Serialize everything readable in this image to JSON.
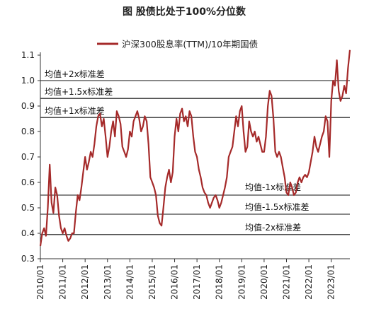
{
  "chart_data": {
    "type": "line",
    "title": "图 股债比处于100%分位数",
    "legend": {
      "position": "top",
      "entries": [
        "沪深300股息率(TTM)/10年期国债"
      ]
    },
    "series": [
      {
        "name": "沪深300股息率(TTM)/10年期国债",
        "color": "#A52A2A",
        "points": [
          [
            "2010/01",
            0.35
          ],
          [
            "2010/02",
            0.4
          ],
          [
            "2010/03",
            0.42
          ],
          [
            "2010/04",
            0.39
          ],
          [
            "2010/05",
            0.5
          ],
          [
            "2010/06",
            0.67
          ],
          [
            "2010/07",
            0.52
          ],
          [
            "2010/08",
            0.48
          ],
          [
            "2010/09",
            0.58
          ],
          [
            "2010/10",
            0.55
          ],
          [
            "2010/11",
            0.47
          ],
          [
            "2010/12",
            0.42
          ],
          [
            "2011/01",
            0.4
          ],
          [
            "2011/02",
            0.42
          ],
          [
            "2011/03",
            0.39
          ],
          [
            "2011/04",
            0.37
          ],
          [
            "2011/05",
            0.38
          ],
          [
            "2011/06",
            0.4
          ],
          [
            "2011/07",
            0.4
          ],
          [
            "2011/08",
            0.48
          ],
          [
            "2011/09",
            0.55
          ],
          [
            "2011/10",
            0.53
          ],
          [
            "2011/11",
            0.58
          ],
          [
            "2011/12",
            0.64
          ],
          [
            "2012/01",
            0.7
          ],
          [
            "2012/02",
            0.65
          ],
          [
            "2012/03",
            0.68
          ],
          [
            "2012/04",
            0.72
          ],
          [
            "2012/05",
            0.7
          ],
          [
            "2012/06",
            0.75
          ],
          [
            "2012/07",
            0.82
          ],
          [
            "2012/08",
            0.86
          ],
          [
            "2012/09",
            0.87
          ],
          [
            "2012/10",
            0.82
          ],
          [
            "2012/11",
            0.85
          ],
          [
            "2012/12",
            0.78
          ],
          [
            "2013/01",
            0.7
          ],
          [
            "2013/02",
            0.74
          ],
          [
            "2013/03",
            0.8
          ],
          [
            "2013/04",
            0.84
          ],
          [
            "2013/05",
            0.78
          ],
          [
            "2013/06",
            0.88
          ],
          [
            "2013/07",
            0.86
          ],
          [
            "2013/08",
            0.83
          ],
          [
            "2013/09",
            0.74
          ],
          [
            "2013/10",
            0.72
          ],
          [
            "2013/11",
            0.7
          ],
          [
            "2013/12",
            0.73
          ],
          [
            "2014/01",
            0.8
          ],
          [
            "2014/02",
            0.78
          ],
          [
            "2014/03",
            0.84
          ],
          [
            "2014/04",
            0.86
          ],
          [
            "2014/05",
            0.88
          ],
          [
            "2014/06",
            0.85
          ],
          [
            "2014/07",
            0.8
          ],
          [
            "2014/08",
            0.82
          ],
          [
            "2014/09",
            0.86
          ],
          [
            "2014/10",
            0.84
          ],
          [
            "2014/11",
            0.75
          ],
          [
            "2014/12",
            0.62
          ],
          [
            "2015/01",
            0.6
          ],
          [
            "2015/02",
            0.58
          ],
          [
            "2015/03",
            0.55
          ],
          [
            "2015/04",
            0.47
          ],
          [
            "2015/05",
            0.44
          ],
          [
            "2015/06",
            0.43
          ],
          [
            "2015/07",
            0.5
          ],
          [
            "2015/08",
            0.58
          ],
          [
            "2015/09",
            0.62
          ],
          [
            "2015/10",
            0.65
          ],
          [
            "2015/11",
            0.6
          ],
          [
            "2015/12",
            0.64
          ],
          [
            "2016/01",
            0.78
          ],
          [
            "2016/02",
            0.85
          ],
          [
            "2016/03",
            0.8
          ],
          [
            "2016/04",
            0.87
          ],
          [
            "2016/05",
            0.89
          ],
          [
            "2016/06",
            0.84
          ],
          [
            "2016/07",
            0.86
          ],
          [
            "2016/08",
            0.82
          ],
          [
            "2016/09",
            0.88
          ],
          [
            "2016/10",
            0.86
          ],
          [
            "2016/11",
            0.78
          ],
          [
            "2016/12",
            0.72
          ],
          [
            "2017/01",
            0.7
          ],
          [
            "2017/02",
            0.65
          ],
          [
            "2017/03",
            0.62
          ],
          [
            "2017/04",
            0.58
          ],
          [
            "2017/05",
            0.56
          ],
          [
            "2017/06",
            0.55
          ],
          [
            "2017/07",
            0.52
          ],
          [
            "2017/08",
            0.5
          ],
          [
            "2017/09",
            0.52
          ],
          [
            "2017/10",
            0.54
          ],
          [
            "2017/11",
            0.55
          ],
          [
            "2017/12",
            0.53
          ],
          [
            "2018/01",
            0.5
          ],
          [
            "2018/02",
            0.52
          ],
          [
            "2018/03",
            0.55
          ],
          [
            "2018/04",
            0.58
          ],
          [
            "2018/05",
            0.62
          ],
          [
            "2018/06",
            0.7
          ],
          [
            "2018/07",
            0.72
          ],
          [
            "2018/08",
            0.74
          ],
          [
            "2018/09",
            0.8
          ],
          [
            "2018/10",
            0.86
          ],
          [
            "2018/11",
            0.82
          ],
          [
            "2018/12",
            0.88
          ],
          [
            "2019/01",
            0.9
          ],
          [
            "2019/02",
            0.8
          ],
          [
            "2019/03",
            0.72
          ],
          [
            "2019/04",
            0.74
          ],
          [
            "2019/05",
            0.84
          ],
          [
            "2019/06",
            0.8
          ],
          [
            "2019/07",
            0.78
          ],
          [
            "2019/08",
            0.8
          ],
          [
            "2019/09",
            0.76
          ],
          [
            "2019/10",
            0.78
          ],
          [
            "2019/11",
            0.75
          ],
          [
            "2019/12",
            0.72
          ],
          [
            "2020/01",
            0.72
          ],
          [
            "2020/02",
            0.78
          ],
          [
            "2020/03",
            0.9
          ],
          [
            "2020/04",
            0.96
          ],
          [
            "2020/05",
            0.94
          ],
          [
            "2020/06",
            0.85
          ],
          [
            "2020/07",
            0.72
          ],
          [
            "2020/08",
            0.7
          ],
          [
            "2020/09",
            0.72
          ],
          [
            "2020/10",
            0.7
          ],
          [
            "2020/11",
            0.66
          ],
          [
            "2020/12",
            0.62
          ],
          [
            "2021/01",
            0.56
          ],
          [
            "2021/02",
            0.55
          ],
          [
            "2021/03",
            0.6
          ],
          [
            "2021/04",
            0.58
          ],
          [
            "2021/05",
            0.55
          ],
          [
            "2021/06",
            0.56
          ],
          [
            "2021/07",
            0.6
          ],
          [
            "2021/08",
            0.62
          ],
          [
            "2021/09",
            0.6
          ],
          [
            "2021/10",
            0.62
          ],
          [
            "2021/11",
            0.63
          ],
          [
            "2021/12",
            0.62
          ],
          [
            "2022/01",
            0.64
          ],
          [
            "2022/02",
            0.68
          ],
          [
            "2022/03",
            0.72
          ],
          [
            "2022/04",
            0.78
          ],
          [
            "2022/05",
            0.74
          ],
          [
            "2022/06",
            0.72
          ],
          [
            "2022/07",
            0.75
          ],
          [
            "2022/08",
            0.78
          ],
          [
            "2022/09",
            0.8
          ],
          [
            "2022/10",
            0.86
          ],
          [
            "2022/11",
            0.84
          ],
          [
            "2022/12",
            0.7
          ],
          [
            "2023/01",
            0.92
          ],
          [
            "2023/02",
            1.0
          ],
          [
            "2023/03",
            0.98
          ],
          [
            "2023/04",
            1.08
          ],
          [
            "2023/05",
            0.96
          ],
          [
            "2023/06",
            0.92
          ],
          [
            "2023/07",
            0.94
          ],
          [
            "2023/08",
            0.98
          ],
          [
            "2023/09",
            0.95
          ],
          [
            "2023/10",
            1.05
          ],
          [
            "2023/11",
            1.12
          ]
        ]
      }
    ],
    "reference_lines": [
      {
        "label": "均值+2x标准差",
        "value": 1.0
      },
      {
        "label": "均值+1.5x标准差",
        "value": 0.93
      },
      {
        "label": "均值+1x标准差",
        "value": 0.855
      },
      {
        "label": "均值-1x标准差",
        "value": 0.55
      },
      {
        "label": "均值-1.5x标准差",
        "value": 0.475
      },
      {
        "label": "均值-2x标准差",
        "value": 0.395
      }
    ],
    "x_ticks": [
      "2010/01",
      "2011/01",
      "2012/01",
      "2013/01",
      "2014/01",
      "2015/01",
      "2016/01",
      "2017/01",
      "2018/01",
      "2019/01",
      "2020/01",
      "2021/01",
      "2022/01",
      "2023/01"
    ],
    "y_ticks": [
      "0.3",
      "0.4",
      "0.5",
      "0.6",
      "0.7",
      "0.8",
      "0.9",
      "1.0",
      "1.1"
    ],
    "xlim": [
      "2010/01",
      "2023/11"
    ],
    "ylim": [
      0.3,
      1.1
    ],
    "grid": false
  }
}
